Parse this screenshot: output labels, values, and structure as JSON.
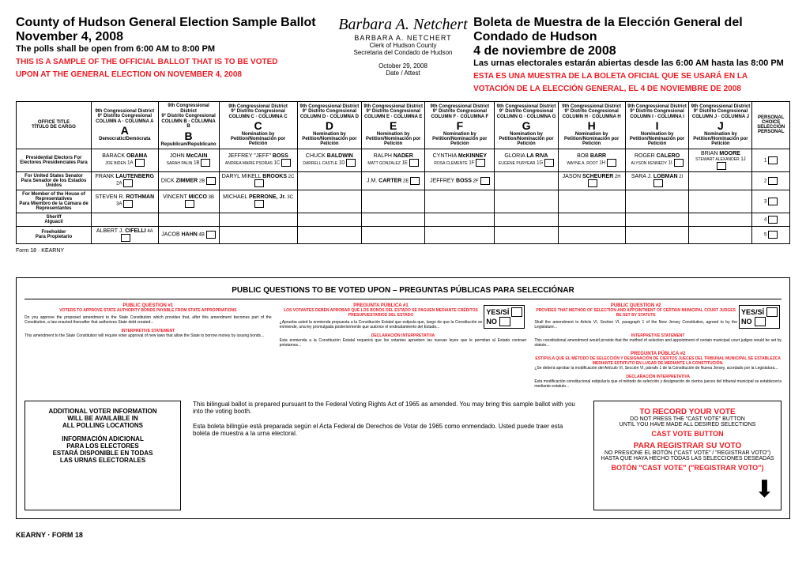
{
  "header": {
    "title_en": "County of Hudson General Election Sample Ballot",
    "date_en": "November 4, 2008",
    "polls_en": "The polls shall be open from 6:00 AM to 8:00 PM",
    "notice_en1": "THIS IS A SAMPLE OF THE OFFICIAL BALLOT THAT IS TO BE VOTED",
    "notice_en2": "UPON AT THE GENERAL ELECTION ON NOVEMBER 4, 2008",
    "title_es": "Boleta de Muestra de la Elección General del Condado de Hudson",
    "date_es": "4 de noviembre de 2008",
    "polls_es": "Las urnas electorales estarán abiertas desde las 6:00 AM hasta las 8:00 PM",
    "notice_es1": "ESTA ES UNA MUESTRA DE LA BOLETA OFICIAL QUE SE USARÁ EN LA",
    "notice_es2": "VOTACIÓN DE LA ELECCIÓN GENERAL, EL 4 DE NOVIEMBRE DE 2008",
    "signature": "Barbara A. Netchert",
    "clerk_name": "BARBARA A. NETCHERT",
    "clerk_title_en": "Clerk of Hudson County",
    "clerk_title_es": "Secretaria del Condado de Hudson",
    "attest_date": "October 29, 2008",
    "attest_label": "Date / Attest"
  },
  "columns": [
    {
      "dist_en": "9th Congressional District",
      "dist_es": "9° Distrito Congresional",
      "col": "COLUMN A · COLUMNA A",
      "letter": "A",
      "party_en": "Democratic",
      "party_es": "Demócrata"
    },
    {
      "dist_en": "9th Congressional District",
      "dist_es": "9° Distrito Congresional",
      "col": "COLUMN B · COLUMNA B",
      "letter": "B",
      "party_en": "Republican",
      "party_es": "Republicano"
    },
    {
      "dist_en": "9th Congressional District",
      "dist_es": "9° Distrito Congresional",
      "col": "COLUMN C · COLUMNA C",
      "letter": "C",
      "party_en": "Nomination by Petition",
      "party_es": "Nominación por Petición"
    },
    {
      "dist_en": "9th Congressional District",
      "dist_es": "9° Distrito Congresional",
      "col": "COLUMN D · COLUMNA D",
      "letter": "D",
      "party_en": "Nomination by Petition",
      "party_es": "Nominación por Petición"
    },
    {
      "dist_en": "9th Congressional District",
      "dist_es": "9° Distrito Congresional",
      "col": "COLUMN E · COLUMNA E",
      "letter": "E",
      "party_en": "Nomination by Petition",
      "party_es": "Nominación por Petición"
    },
    {
      "dist_en": "9th Congressional District",
      "dist_es": "9° Distrito Congresional",
      "col": "COLUMN F · COLUMNA F",
      "letter": "F",
      "party_en": "Nomination by Petition",
      "party_es": "Nominación por Petición"
    },
    {
      "dist_en": "9th Congressional District",
      "dist_es": "9° Distrito Congresional",
      "col": "COLUMN G · COLUMNA G",
      "letter": "G",
      "party_en": "Nomination by Petition",
      "party_es": "Nominación por Petición"
    },
    {
      "dist_en": "9th Congressional District",
      "dist_es": "9° Distrito Congresional",
      "col": "COLUMN H · COLUMNA H",
      "letter": "H",
      "party_en": "Nomination by Petition",
      "party_es": "Nominación por Petición"
    },
    {
      "dist_en": "9th Congressional District",
      "dist_es": "9° Distrito Congresional",
      "col": "COLUMN I · COLUMNA I",
      "letter": "I",
      "party_en": "Nomination by Petition",
      "party_es": "Nominación por Petición"
    },
    {
      "dist_en": "9th Congressional District",
      "dist_es": "9° Distrito Congresional",
      "col": "COLUMN J · COLUMNA J",
      "letter": "J",
      "party_en": "Nomination by Petition",
      "party_es": "Nominación por Petición"
    }
  ],
  "office_header": {
    "en": "OFFICE TITLE",
    "es": "TÍTULO DE CARGO"
  },
  "personal_choice": {
    "en": "PERSONAL CHOICE",
    "es": "SELECCIÓN PERSONAL"
  },
  "offices": [
    {
      "en": "Presidential Electors For",
      "es": "Electores Presidenciales Para"
    },
    {
      "en": "For United States Senator",
      "es": "Para Senador de los Estados Unidos"
    },
    {
      "en": "For Member of the House of Representatives",
      "es": "Para Miembro de la Cámara de Representantes"
    },
    {
      "en": "Sheriff",
      "es": "Alguacil"
    },
    {
      "en": "Freeholder",
      "es": "Para Propietario"
    }
  ],
  "candidates": {
    "r0": [
      {
        "pre": "BARACK",
        "last": "OBAMA",
        "sub": "JOE BIDEN",
        "num": "1A"
      },
      {
        "pre": "JOHN",
        "last": "McCAIN",
        "sub": "SARAH PALIN",
        "num": "1B"
      },
      {
        "pre": "JEFFREY \"JEFF\"",
        "last": "BOSS",
        "sub": "ANDREA MARIE PSORAS",
        "num": "1C"
      },
      {
        "pre": "CHUCK",
        "last": "BALDWIN",
        "sub": "DARRELL CASTLE",
        "num": "1D"
      },
      {
        "pre": "RALPH",
        "last": "NADER",
        "sub": "MATT GONZALEZ",
        "num": "1E"
      },
      {
        "pre": "CYNTHIA",
        "last": "McKINNEY",
        "sub": "ROSA CLEMENTE",
        "num": "1F"
      },
      {
        "pre": "GLORIA",
        "last": "LA RIVA",
        "sub": "EUGENE PURYEAR",
        "num": "1G"
      },
      {
        "pre": "BOB",
        "last": "BARR",
        "sub": "WAYNE A. ROOT",
        "num": "1H"
      },
      {
        "pre": "ROGER",
        "last": "CALERO",
        "sub": "ALYSON KENNEDY",
        "num": "1I"
      },
      {
        "pre": "BRIAN",
        "last": "MOORE",
        "sub": "STEWART ALEXANDER",
        "num": "1J"
      }
    ],
    "r1": [
      {
        "pre": "FRANK",
        "last": "LAUTENBERG",
        "num": "2A"
      },
      {
        "pre": "DICK",
        "last": "ZIMMER",
        "num": "2B"
      },
      {
        "pre": "DARYL MIKELL",
        "last": "BROOKS",
        "num": "2C"
      },
      null,
      {
        "pre": "J.M.",
        "last": "CARTER",
        "num": "2E"
      },
      {
        "pre": "JEFFREY",
        "last": "BOSS",
        "num": "2F"
      },
      null,
      {
        "pre": "JASON",
        "last": "SCHEURER",
        "num": "2H"
      },
      {
        "pre": "SARA J.",
        "last": "LOBMAN",
        "num": "2I"
      },
      null
    ],
    "r2": [
      {
        "pre": "STEVEN R.",
        "last": "ROTHMAN",
        "num": "3A"
      },
      {
        "pre": "VINCENT",
        "last": "MICCO",
        "num": "3B"
      },
      {
        "pre": "MICHAEL",
        "last": "PERRONE, Jr.",
        "num": "3C"
      },
      null,
      null,
      null,
      null,
      null,
      null,
      null
    ],
    "r3": [
      null,
      null,
      null,
      null,
      null,
      null,
      null,
      null,
      null,
      null
    ],
    "r4": [
      {
        "pre": "ALBERT J.",
        "last": "CIFELLI",
        "num": "4A"
      },
      {
        "pre": "JACOB",
        "last": "HAHN",
        "num": "4B"
      },
      null,
      null,
      null,
      null,
      null,
      null,
      null,
      null
    ]
  },
  "questions": {
    "title": "PUBLIC QUESTIONS TO BE VOTED UPON – PREGUNTAS PÚBLICAS PARA SELECCIÓNAR",
    "q1_en_title": "PUBLIC QUESTION #1",
    "q1_en_sub": "VOTERS TO APPROVE STATE AUTHORITY BONDS PAYABLE FROM STATE APPROPRIATIONS",
    "q1_es_title": "PREGUNTA PÚBLICA #1",
    "q1_es_sub": "LOS VOTANTES DEBEN APROBAR QUE LOS BONOS DEL ESTADO SE PAGUEN MEDIANTE CRÉDITOS PRESUPUESTARIOS DEL ESTADO",
    "q2_en_title": "PUBLIC QUESTION #2",
    "q2_en_sub": "PROVIDES THAT METHOD OF SELECTION AND APPOINTMENT OF CERTAIN MUNICIPAL COURT JUDGES BE SET BY STATUTE",
    "q2_es_title": "PREGUNTA PÚBLICA #2",
    "q2_es_sub": "ESTIPULA QUE EL MÉTODO DE SELECCIÓN Y DESIGNACIÓN DE CIERTOS JUECES DEL TRIBUNAL MUNICIPAL SE ESTABLEZCA MEDIANTE ESTATUTO EN LUGAR DE MEDIANTE LA CONSTITUCIÓN.",
    "interp_en": "INTERPRETIVE STATEMENT",
    "interp_es": "DECLARACIÓN INTERPRETATIVA",
    "yes": "YES/SÍ",
    "no": "NO"
  },
  "footer": {
    "addl_en1": "ADDITIONAL VOTER INFORMATION",
    "addl_en2": "WILL BE AVAILABLE IN",
    "addl_en3": "ALL POLLING LOCATIONS",
    "addl_es1": "INFORMACIÓN ADICIONAL",
    "addl_es2": "PARA LOS ELECTORES",
    "addl_es3": "ESTARÁ DISPONIBLE EN TODAS",
    "addl_es4": "LAS URNAS ELECTORALES",
    "bilingual_en": "This bilingual ballot is prepared pursuant to the Federal Voting Rights Act of 1965 as amended. You may bring this sample ballot with you into the voting booth.",
    "bilingual_es": "Esta boleta bilingüe está preparada según el Acta Federal de Derechos de Votar de 1965 como enmendado. Usted puede traer esta boleta de muestra a la urna electoral.",
    "record_title_en": "TO RECORD YOUR VOTE",
    "record_en1": "DO NOT PRESS THE \"CAST VOTE\" BUTTON",
    "record_en2": "UNTIL YOU HAVE MADE ALL DESIRED SELECTIONS",
    "cast_en": "CAST VOTE BUTTON",
    "record_title_es": "PARA REGISTRAR SU VOTO",
    "record_es1": "NO PRESIONE EL BOTÓN (\"CAST VOTE\" / \"REGISTRAR VOTO\")",
    "record_es2": "HASTA QUE HAYA HECHO TODAS LAS SELECCIONES DESEADAS",
    "cast_es": "BOTÓN \"CAST VOTE\" (\"REGISTRAR VOTO\")"
  },
  "form_top": "Form 18 · KEARNY",
  "form_bottom": "KEARNY · FORM 18"
}
